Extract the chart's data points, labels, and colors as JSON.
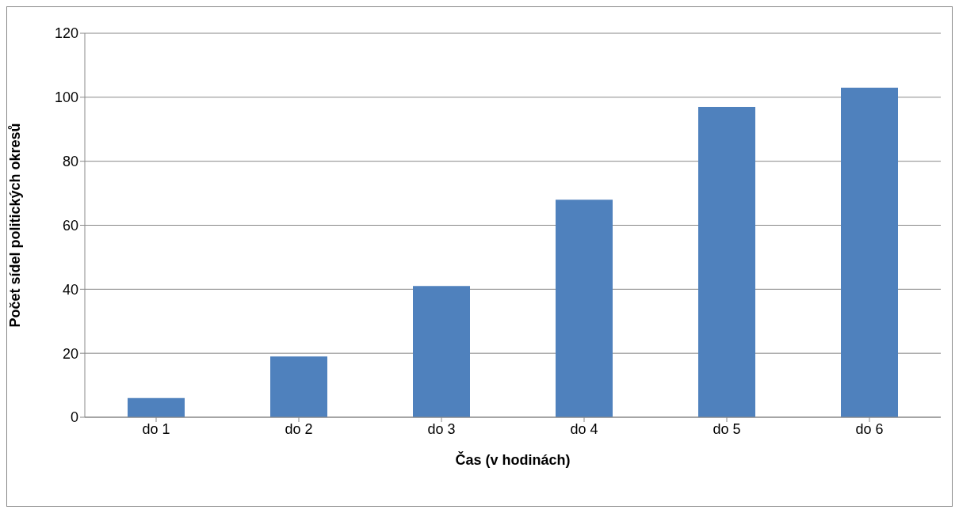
{
  "chart_data": {
    "type": "bar",
    "xlabel": "Čas (v hodinách)",
    "ylabel": "Počet sídel politických okresů",
    "categories": [
      "do 1",
      "do 2",
      "do 3",
      "do 4",
      "do 5",
      "do 6"
    ],
    "values": [
      6,
      19,
      41,
      68,
      97,
      103
    ],
    "color": "#4f81bd",
    "ylim": [
      0,
      120
    ],
    "yticks": [
      0,
      20,
      40,
      60,
      80,
      100,
      120
    ],
    "grid": "y",
    "legend": false
  }
}
